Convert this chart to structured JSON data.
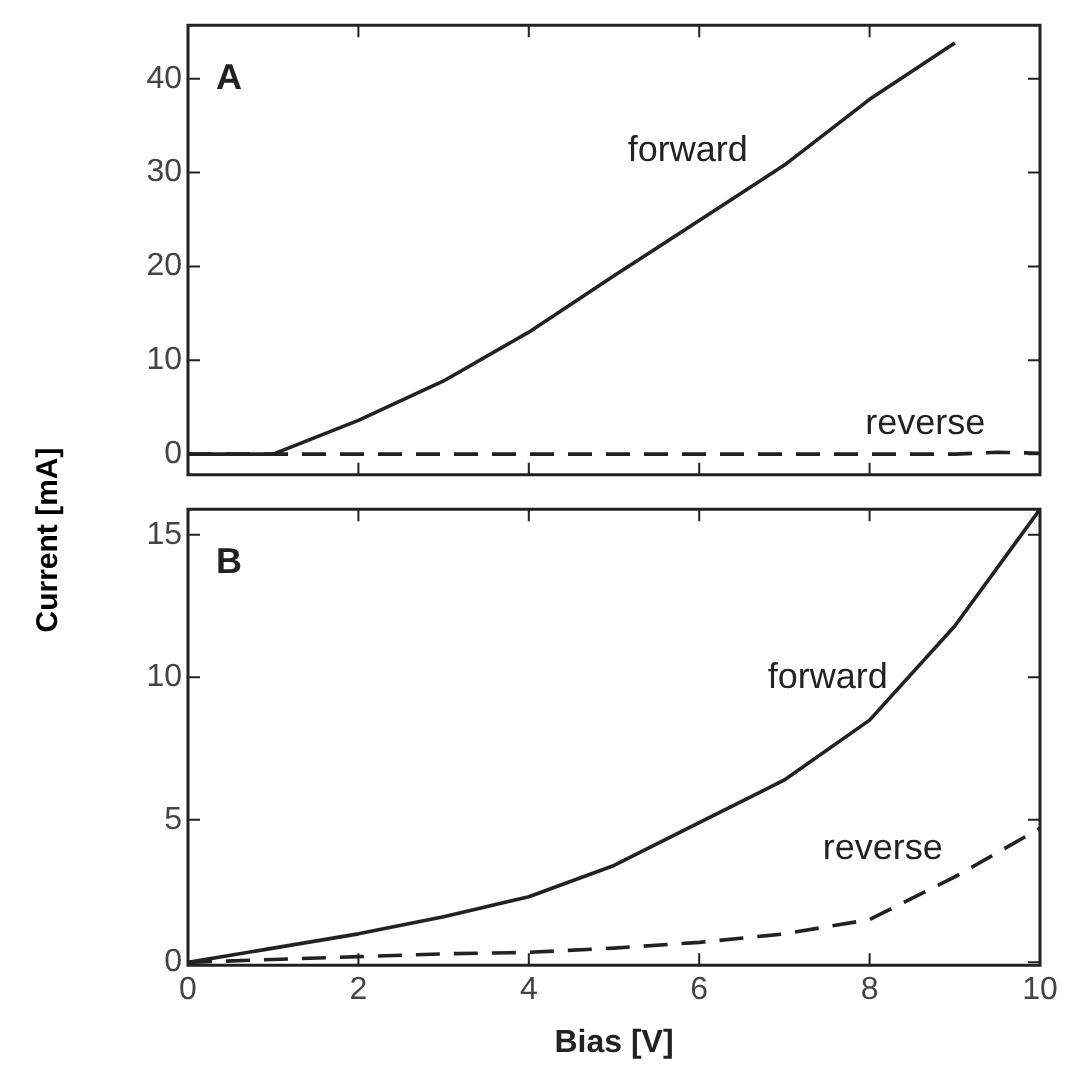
{
  "chart_data": [
    {
      "type": "line",
      "ylabel": "Current [mA]",
      "annotations": [
        "A"
      ],
      "x": [
        0,
        1,
        2,
        3,
        4,
        5,
        6,
        7,
        8,
        9
      ],
      "xlim": [
        0,
        10
      ],
      "xticks": [
        0,
        2,
        4,
        6,
        8,
        10
      ],
      "ylim": [
        -2.2,
        45.7
      ],
      "yticks": [
        0,
        10,
        20,
        30,
        40
      ],
      "tick_labels": "y",
      "grid": false,
      "legend": false,
      "marker": "none",
      "series": [
        {
          "name": "forward",
          "color": "#222222",
          "line_style": "solid",
          "values": [
            0,
            0,
            3.6,
            7.8,
            13,
            19,
            24.9,
            30.8,
            37.8,
            43.8
          ]
        },
        {
          "name": "reverse",
          "color": "#222222",
          "line_style": "dashed",
          "x": [
            0,
            1,
            2,
            3,
            4,
            5,
            6,
            7,
            8,
            9,
            9.5,
            10
          ],
          "values": [
            0,
            0,
            0,
            0,
            0,
            0,
            0,
            0,
            0,
            0,
            0.2,
            0.1
          ]
        }
      ]
    },
    {
      "type": "line",
      "xlabel": "Bias [V]",
      "annotations": [
        "B"
      ],
      "x": [
        0,
        1,
        2,
        3,
        4,
        5,
        6,
        7,
        8,
        9,
        10
      ],
      "xlim": [
        0,
        10
      ],
      "xticks": [
        0,
        2,
        4,
        6,
        8,
        10
      ],
      "ylim": [
        -0.1,
        15.9
      ],
      "yticks": [
        0,
        5,
        10,
        15
      ],
      "grid": false,
      "legend": false,
      "marker": "none",
      "series": [
        {
          "name": "forward",
          "color": "#222222",
          "line_style": "solid",
          "values": [
            0,
            0.5,
            1.0,
            1.6,
            2.3,
            3.4,
            4.9,
            6.4,
            8.5,
            11.8,
            15.9
          ]
        },
        {
          "name": "reverse",
          "color": "#222222",
          "line_style": "dashed",
          "values": [
            0,
            0.1,
            0.2,
            0.3,
            0.35,
            0.5,
            0.7,
            1.0,
            1.5,
            3.0,
            4.7
          ]
        }
      ]
    }
  ]
}
